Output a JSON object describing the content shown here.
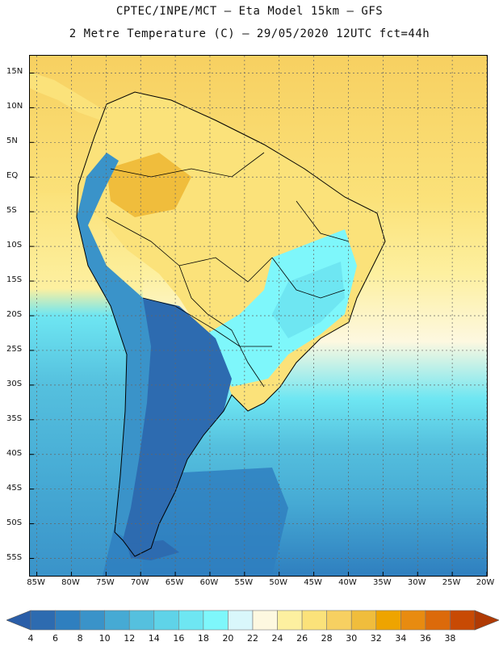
{
  "header": {
    "title_line1": "CPTEC/INPE/MCT —  Eta Model 15km — GFS",
    "title_line2": "2 Metre Temperature (C) — 29/05/2020 12UTC fct=44h"
  },
  "map": {
    "lat_labels": [
      "15N",
      "10N",
      "5N",
      "EQ",
      "5S",
      "10S",
      "15S",
      "20S",
      "25S",
      "30S",
      "35S",
      "40S",
      "45S",
      "50S",
      "55S"
    ],
    "lat_values": [
      15,
      10,
      5,
      0,
      -5,
      -10,
      -15,
      -20,
      -25,
      -30,
      -35,
      -40,
      -45,
      -50,
      -55
    ],
    "lon_labels": [
      "85W",
      "80W",
      "75W",
      "70W",
      "65W",
      "60W",
      "55W",
      "50W",
      "45W",
      "40W",
      "35W",
      "30W",
      "25W",
      "20W"
    ],
    "lon_values": [
      -85,
      -80,
      -75,
      -70,
      -65,
      -60,
      -55,
      -50,
      -45,
      -40,
      -35,
      -30,
      -25,
      -20
    ],
    "lat_range": [
      -57.5,
      17.5
    ],
    "lon_range": [
      -86,
      -20
    ],
    "grid": "dotted"
  },
  "colorbar": {
    "labels": [
      "4",
      "6",
      "8",
      "10",
      "12",
      "14",
      "16",
      "18",
      "20",
      "22",
      "24",
      "26",
      "28",
      "30",
      "32",
      "34",
      "36",
      "38"
    ],
    "colors": [
      "#2d6bb0",
      "#2f7fbf",
      "#3a93c9",
      "#46aad4",
      "#55c0de",
      "#5fd3e8",
      "#6ee6f2",
      "#7ef7fb",
      "#d9f7fb",
      "#fdf8e0",
      "#fdf0a0",
      "#fbe27a",
      "#f7d061",
      "#f0bd3c",
      "#eea400",
      "#e88b10",
      "#dc6a0a",
      "#c84a04"
    ],
    "below_color": "#2a5ea8",
    "above_color": "#b03a04"
  }
}
